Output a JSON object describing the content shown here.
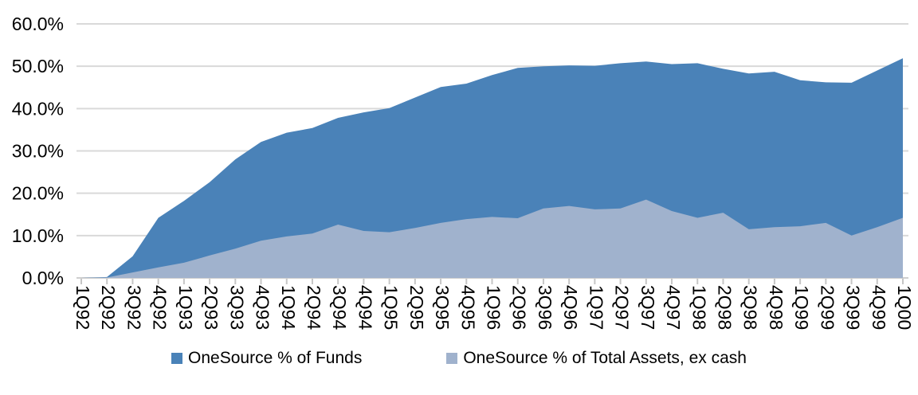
{
  "chart_data": {
    "type": "area",
    "title": "",
    "xlabel": "",
    "ylabel": "",
    "grid": true,
    "legend_position": "bottom",
    "overlapping": true,
    "ylim": [
      0,
      60
    ],
    "y_ticks": [
      {
        "value": 0,
        "label": "0.0%"
      },
      {
        "value": 10,
        "label": "10.0%"
      },
      {
        "value": 20,
        "label": "20.0%"
      },
      {
        "value": 30,
        "label": "30.0%"
      },
      {
        "value": 40,
        "label": "40.0%"
      },
      {
        "value": 50,
        "label": "50.0%"
      },
      {
        "value": 60,
        "label": "60.0%"
      }
    ],
    "categories": [
      "1Q92",
      "2Q92",
      "3Q92",
      "4Q92",
      "1Q93",
      "2Q93",
      "3Q93",
      "4Q93",
      "1Q94",
      "2Q94",
      "3Q94",
      "4Q94",
      "1Q95",
      "2Q95",
      "3Q95",
      "4Q95",
      "1Q96",
      "2Q96",
      "3Q96",
      "4Q96",
      "1Q97",
      "2Q97",
      "3Q97",
      "4Q97",
      "1Q98",
      "2Q98",
      "3Q98",
      "4Q98",
      "1Q99",
      "2Q99",
      "3Q99",
      "4Q99",
      "1Q00"
    ],
    "series": [
      {
        "name": "OneSource % of Funds",
        "color": "#4a82b8",
        "values": [
          0.0,
          0.2,
          5.1,
          14.2,
          18.2,
          22.6,
          28.0,
          32.1,
          34.3,
          35.4,
          37.8,
          39.1,
          40.1,
          42.6,
          45.1,
          45.9,
          47.9,
          49.6,
          50.0,
          50.2,
          50.1,
          50.7,
          51.1,
          50.5,
          50.7,
          49.4,
          48.3,
          48.7,
          46.7,
          46.2,
          46.1,
          49.0,
          51.9
        ]
      },
      {
        "name": "OneSource % of Total Assets, ex cash",
        "color": "#a0b2cd",
        "values": [
          0.0,
          0.1,
          1.3,
          2.5,
          3.6,
          5.3,
          6.9,
          8.8,
          9.8,
          10.5,
          12.6,
          11.1,
          10.8,
          11.8,
          13.0,
          13.9,
          14.4,
          14.1,
          16.4,
          17.0,
          16.2,
          16.4,
          18.5,
          15.8,
          14.2,
          15.4,
          11.5,
          12.0,
          12.2,
          13.0,
          10.0,
          12.0,
          14.2
        ]
      }
    ],
    "colors": {
      "gridline": "#d9d9d9",
      "axis_line": "#cfcfcf",
      "tick": "#c6c6c6",
      "text": "#000000",
      "background": "#ffffff"
    }
  }
}
